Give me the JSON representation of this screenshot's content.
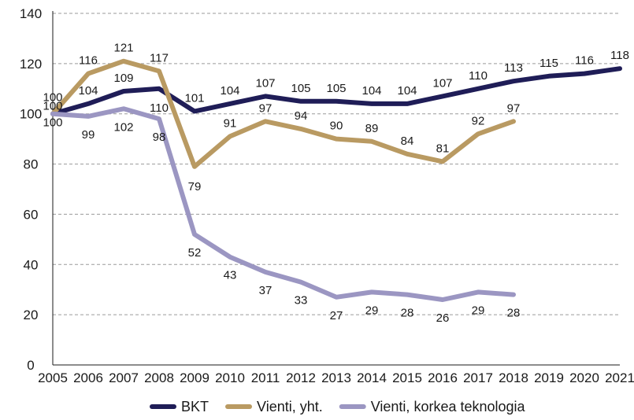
{
  "chart_data": {
    "type": "line",
    "title": "",
    "xlabel": "",
    "ylabel": "",
    "x": [
      "2005",
      "2006",
      "2007",
      "2008",
      "2009",
      "2010",
      "2011",
      "2012",
      "2013",
      "2014",
      "2015",
      "2016",
      "2017",
      "2018",
      "2019",
      "2020",
      "2021"
    ],
    "ylim": [
      0,
      140
    ],
    "yticks": [
      0,
      20,
      40,
      60,
      80,
      100,
      120,
      140
    ],
    "grid": true,
    "legend_position": "bottom",
    "series": [
      {
        "name": "BKT",
        "color": "#1f1d57",
        "values": [
          100,
          104,
          109,
          110,
          101,
          104,
          107,
          105,
          105,
          104,
          104,
          107,
          110,
          113,
          115,
          116,
          118
        ]
      },
      {
        "name": "Vienti, yht.",
        "color": "#b99a62",
        "values": [
          100,
          116,
          121,
          117,
          79,
          91,
          97,
          94,
          90,
          89,
          84,
          81,
          92,
          97,
          null,
          null,
          null
        ]
      },
      {
        "name": "Vienti, korkea teknologia",
        "color": "#9b96c2",
        "values": [
          100,
          99,
          102,
          98,
          52,
          43,
          37,
          33,
          27,
          29,
          28,
          26,
          29,
          28,
          null,
          null,
          null
        ]
      }
    ]
  }
}
